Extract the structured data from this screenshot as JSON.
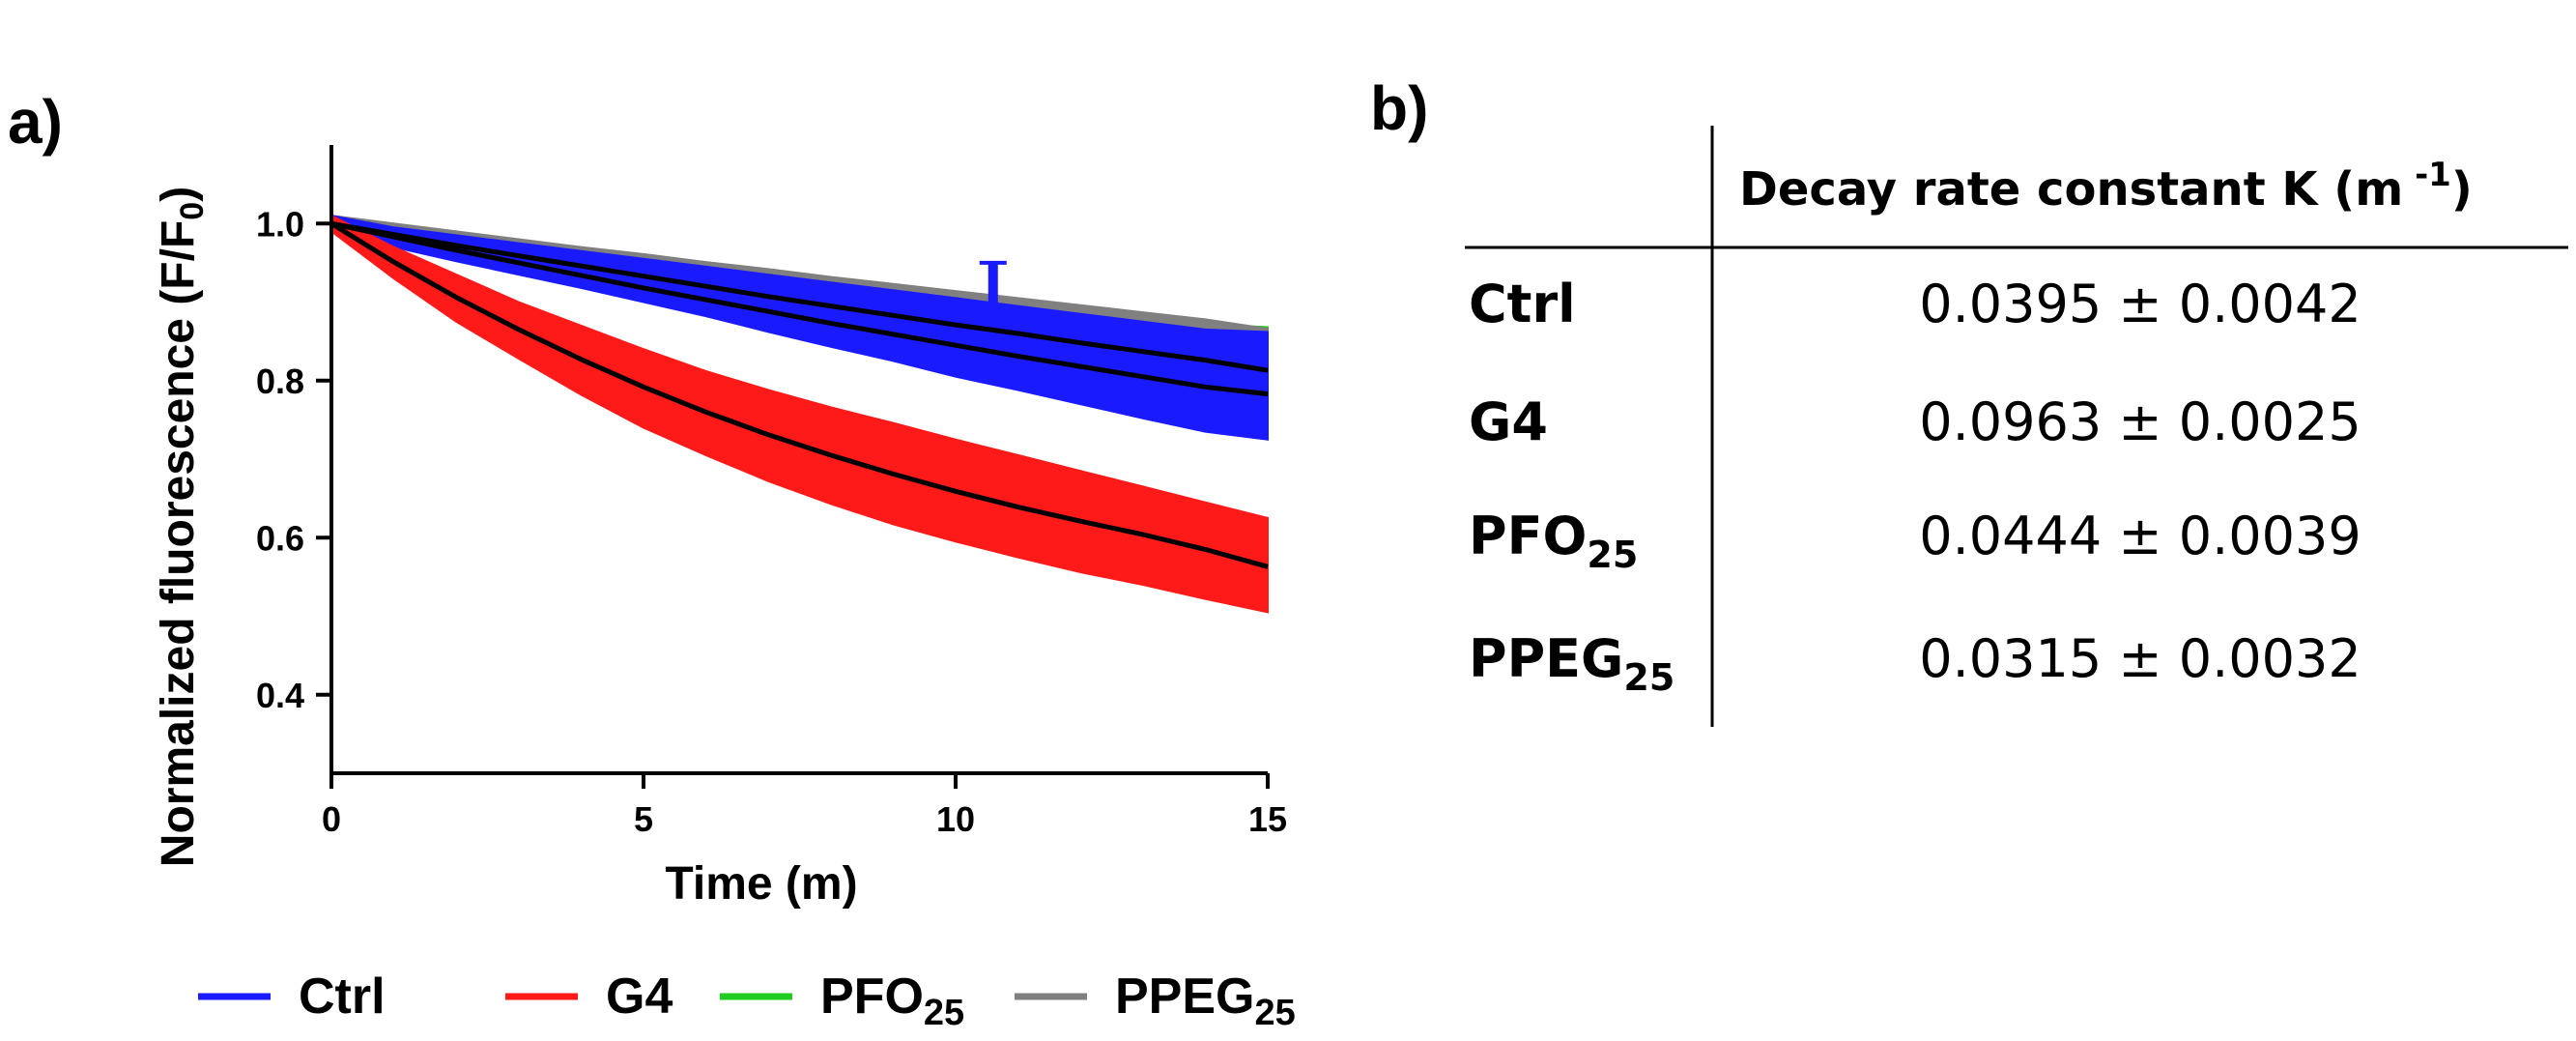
{
  "panels": {
    "a_label": "a)",
    "b_label": "b)"
  },
  "chart_data": {
    "type": "line",
    "title": "",
    "xlabel": "Time (m)",
    "ylabel": {
      "main": "Normalized fluorescence (F/F",
      "sub": "0",
      "close": ")"
    },
    "xlim": [
      0,
      15
    ],
    "ylim": [
      0.3,
      1.1
    ],
    "xticks": [
      0,
      5,
      10,
      15
    ],
    "xtick_labels": [
      "0",
      "5",
      "10",
      "15"
    ],
    "yticks": [
      0.4,
      0.6,
      0.8,
      1.0
    ],
    "ytick_labels": [
      "0.4",
      "0.6",
      "0.8",
      "1.0"
    ],
    "grid": false,
    "legend_position": "bottom",
    "x": [
      0,
      1,
      2,
      3,
      4,
      5,
      6,
      7,
      8,
      9,
      10,
      11,
      12,
      13,
      14,
      15
    ],
    "series": [
      {
        "name": "Ctrl",
        "sub": "",
        "color": "#1a1aff",
        "fit": [
          1.0,
          0.987,
          0.975,
          0.963,
          0.951,
          0.939,
          0.927,
          0.915,
          0.903,
          0.892,
          0.88,
          0.868,
          0.856,
          0.844,
          0.832,
          0.82
        ],
        "upper": [
          1.01,
          0.995,
          0.985,
          0.975,
          0.965,
          0.955,
          0.945,
          0.935,
          0.925,
          0.915,
          0.905,
          0.895,
          0.885,
          0.875,
          0.865,
          0.862
        ],
        "lower": [
          0.99,
          0.97,
          0.952,
          0.935,
          0.918,
          0.9,
          0.882,
          0.862,
          0.843,
          0.825,
          0.805,
          0.788,
          0.77,
          0.752,
          0.735,
          0.725
        ]
      },
      {
        "name": "G4",
        "sub": "",
        "color": "#ff1a1a",
        "fit": [
          1.0,
          0.95,
          0.905,
          0.864,
          0.826,
          0.792,
          0.76,
          0.731,
          0.705,
          0.681,
          0.659,
          0.639,
          0.621,
          0.604,
          0.589,
          0.565
        ],
        "upper": [
          1.01,
          0.97,
          0.935,
          0.9,
          0.87,
          0.84,
          0.812,
          0.788,
          0.766,
          0.746,
          0.725,
          0.705,
          0.685,
          0.665,
          0.645,
          0.625
        ],
        "lower": [
          0.99,
          0.93,
          0.875,
          0.828,
          0.782,
          0.74,
          0.705,
          0.672,
          0.643,
          0.617,
          0.595,
          0.575,
          0.556,
          0.54,
          0.522,
          0.505
        ]
      },
      {
        "name": "PFO",
        "sub": "25",
        "color": "#1fcc1f",
        "fit": [
          1.0,
          0.988,
          0.978,
          0.968,
          0.958,
          0.948,
          0.938,
          0.928,
          0.918,
          0.909,
          0.899,
          0.89,
          0.88,
          0.871,
          0.862,
          0.853
        ],
        "upper": [
          1.01,
          0.998,
          0.988,
          0.978,
          0.968,
          0.958,
          0.948,
          0.938,
          0.928,
          0.918,
          0.908,
          0.898,
          0.888,
          0.878,
          0.872,
          0.868
        ],
        "lower": [
          0.99,
          0.978,
          0.968,
          0.956,
          0.944,
          0.932,
          0.92,
          0.908,
          0.896,
          0.884,
          0.872,
          0.86,
          0.848,
          0.836,
          0.824,
          0.752
        ]
      },
      {
        "name": "PPEG",
        "sub": "25",
        "color": "#808080",
        "fit": [
          1.0,
          0.99,
          0.98,
          0.97,
          0.96,
          0.951,
          0.941,
          0.932,
          0.922,
          0.913,
          0.904,
          0.895,
          0.886,
          0.877,
          0.868,
          0.856
        ],
        "upper": [
          1.01,
          1.0,
          0.99,
          0.98,
          0.97,
          0.961,
          0.951,
          0.942,
          0.932,
          0.923,
          0.914,
          0.905,
          0.896,
          0.887,
          0.878,
          0.866
        ],
        "lower": [
          0.99,
          0.98,
          0.97,
          0.96,
          0.95,
          0.941,
          0.931,
          0.922,
          0.912,
          0.903,
          0.894,
          0.885,
          0.876,
          0.867,
          0.858,
          0.846
        ]
      }
    ],
    "fit_lines": [
      {
        "name": "fit-upper",
        "color": "#000000",
        "values": [
          1.0,
          0.986,
          0.972,
          0.959,
          0.946,
          0.933,
          0.92,
          0.907,
          0.895,
          0.883,
          0.871,
          0.86,
          0.848,
          0.837,
          0.826,
          0.813
        ]
      },
      {
        "name": "fit-lower",
        "color": "#000000",
        "values": [
          1.0,
          0.983,
          0.966,
          0.95,
          0.934,
          0.918,
          0.903,
          0.888,
          0.873,
          0.859,
          0.845,
          0.831,
          0.818,
          0.805,
          0.792,
          0.783
        ]
      },
      {
        "name": "fit-g4",
        "color": "#000000",
        "values": [
          1.0,
          0.951,
          0.906,
          0.865,
          0.827,
          0.792,
          0.76,
          0.731,
          0.705,
          0.681,
          0.659,
          0.639,
          0.621,
          0.604,
          0.585,
          0.563
        ]
      }
    ],
    "spike": {
      "x": 10.6,
      "y_top": 0.95,
      "y_bottom": 0.81
    }
  },
  "table": {
    "header": {
      "main": "Decay rate constant K (m",
      "sup": " -1",
      "close": ")"
    },
    "rows": [
      {
        "label": "Ctrl",
        "sub": "",
        "value": "0.0395 ± 0.0042"
      },
      {
        "label": "G4",
        "sub": "",
        "value": "0.0963 ± 0.0025"
      },
      {
        "label": "PFO",
        "sub": "25",
        "value": "0.0444 ± 0.0039"
      },
      {
        "label": "PPEG",
        "sub": "25",
        "value": "0.0315 ± 0.0032"
      }
    ]
  },
  "colors": {
    "axis": "#000000",
    "background": "#ffffff"
  }
}
